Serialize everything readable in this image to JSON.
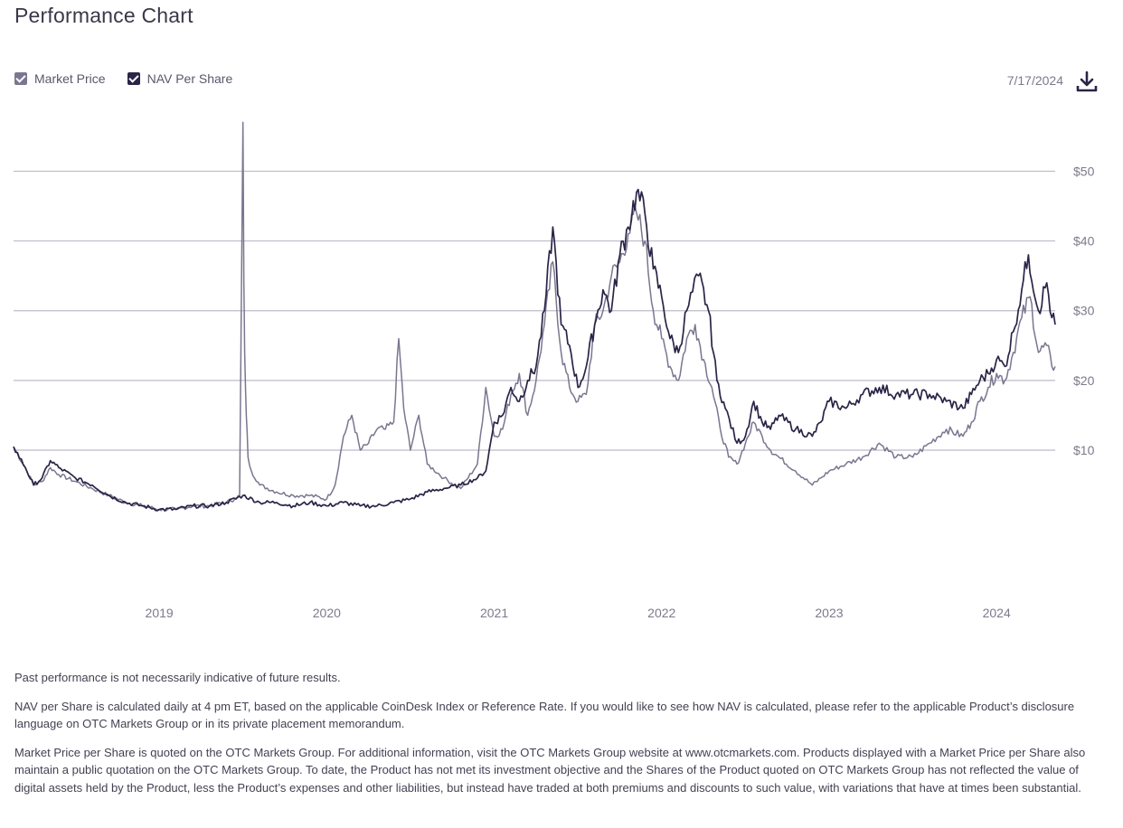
{
  "page": {
    "title": "Performance Chart",
    "date": "7/17/2024",
    "download_icon": "download-icon"
  },
  "legend": [
    {
      "label": "Market Price",
      "color": "#7a7690",
      "checked": true
    },
    {
      "label": "NAV Per Share",
      "color": "#2a2447",
      "checked": true
    }
  ],
  "notes": [
    "Past performance is not necessarily indicative of future results.",
    "NAV per Share is calculated daily at 4 pm ET, based on the applicable CoinDesk Index or Reference Rate. If you would like to see how NAV is calculated, please refer to the applicable Product’s disclosure language on OTC Markets Group or in its private placement memorandum.",
    "Market Price per Share is quoted on the OTC Markets Group. For additional information, visit the OTC Markets Group website at www.otcmarkets.com. Products displayed with a Market Price per Share also maintain a public quotation on the OTC Markets Group. To date, the Product has not met its investment objective and the Shares of the Product quoted on OTC Markets Group has not reflected the value of digital assets held by the Product, less the Product’s expenses and other liabilities, but instead have traded at both premiums and discounts to such value, with variations that have at times been substantial."
  ],
  "chart_data": {
    "type": "line",
    "xlim": [
      2018.13,
      2024.35
    ],
    "ylim": [
      -11,
      59
    ],
    "xticks": [
      {
        "value": 2019,
        "label": "2019"
      },
      {
        "value": 2020,
        "label": "2020"
      },
      {
        "value": 2021,
        "label": "2021"
      },
      {
        "value": 2022,
        "label": "2022"
      },
      {
        "value": 2023,
        "label": "2023"
      },
      {
        "value": 2024,
        "label": "2024"
      }
    ],
    "yticks": [
      {
        "value": 10,
        "label": "$10"
      },
      {
        "value": 20,
        "label": "$20"
      },
      {
        "value": 30,
        "label": "$30"
      },
      {
        "value": 40,
        "label": "$40"
      },
      {
        "value": 50,
        "label": "$50"
      }
    ],
    "grid": true,
    "series": [
      {
        "name": "Market Price",
        "color": "#7a7690",
        "points": [
          [
            2018.13,
            10.5
          ],
          [
            2018.2,
            7.5
          ],
          [
            2018.25,
            5
          ],
          [
            2018.3,
            5.5
          ],
          [
            2018.35,
            7.5
          ],
          [
            2018.4,
            6.5
          ],
          [
            2018.5,
            5.5
          ],
          [
            2018.6,
            4.5
          ],
          [
            2018.7,
            3.5
          ],
          [
            2018.8,
            2.5
          ],
          [
            2018.9,
            2
          ],
          [
            2019.0,
            1.5
          ],
          [
            2019.1,
            1.5
          ],
          [
            2019.2,
            2
          ],
          [
            2019.3,
            2
          ],
          [
            2019.4,
            2.5
          ],
          [
            2019.45,
            3
          ],
          [
            2019.48,
            3.5
          ],
          [
            2019.5,
            57
          ],
          [
            2019.505,
            34
          ],
          [
            2019.51,
            24
          ],
          [
            2019.52,
            15
          ],
          [
            2019.53,
            9
          ],
          [
            2019.55,
            7
          ],
          [
            2019.6,
            5
          ],
          [
            2019.7,
            4
          ],
          [
            2019.8,
            3.5
          ],
          [
            2019.9,
            3.5
          ],
          [
            2020.0,
            3
          ],
          [
            2020.05,
            5
          ],
          [
            2020.1,
            12
          ],
          [
            2020.15,
            15
          ],
          [
            2020.2,
            10
          ],
          [
            2020.25,
            11
          ],
          [
            2020.3,
            13
          ],
          [
            2020.35,
            13
          ],
          [
            2020.4,
            14
          ],
          [
            2020.43,
            26
          ],
          [
            2020.46,
            16
          ],
          [
            2020.5,
            10
          ],
          [
            2020.55,
            15
          ],
          [
            2020.6,
            8
          ],
          [
            2020.7,
            6
          ],
          [
            2020.8,
            4.5
          ],
          [
            2020.9,
            8
          ],
          [
            2020.95,
            19
          ],
          [
            2021.0,
            12
          ],
          [
            2021.05,
            13
          ],
          [
            2021.1,
            18
          ],
          [
            2021.15,
            21
          ],
          [
            2021.2,
            15
          ],
          [
            2021.25,
            20
          ],
          [
            2021.3,
            28
          ],
          [
            2021.35,
            37
          ],
          [
            2021.4,
            24
          ],
          [
            2021.45,
            19
          ],
          [
            2021.5,
            17
          ],
          [
            2021.55,
            18
          ],
          [
            2021.6,
            28
          ],
          [
            2021.65,
            30
          ],
          [
            2021.7,
            35
          ],
          [
            2021.75,
            37
          ],
          [
            2021.8,
            41
          ],
          [
            2021.85,
            44
          ],
          [
            2021.9,
            40
          ],
          [
            2021.95,
            30
          ],
          [
            2022.0,
            26
          ],
          [
            2022.05,
            22
          ],
          [
            2022.1,
            20
          ],
          [
            2022.15,
            26
          ],
          [
            2022.2,
            28
          ],
          [
            2022.25,
            23
          ],
          [
            2022.3,
            19
          ],
          [
            2022.35,
            13
          ],
          [
            2022.4,
            9
          ],
          [
            2022.45,
            8
          ],
          [
            2022.5,
            11
          ],
          [
            2022.55,
            14
          ],
          [
            2022.6,
            12
          ],
          [
            2022.65,
            10
          ],
          [
            2022.7,
            9
          ],
          [
            2022.8,
            7
          ],
          [
            2022.9,
            5
          ],
          [
            2022.95,
            6
          ],
          [
            2023.0,
            7
          ],
          [
            2023.1,
            8
          ],
          [
            2023.2,
            9
          ],
          [
            2023.3,
            11
          ],
          [
            2023.4,
            9
          ],
          [
            2023.5,
            9
          ],
          [
            2023.6,
            11
          ],
          [
            2023.7,
            13
          ],
          [
            2023.8,
            12
          ],
          [
            2023.85,
            14
          ],
          [
            2023.9,
            17
          ],
          [
            2023.95,
            19
          ],
          [
            2024.0,
            21
          ],
          [
            2024.05,
            20
          ],
          [
            2024.1,
            24
          ],
          [
            2024.15,
            29
          ],
          [
            2024.2,
            32
          ],
          [
            2024.25,
            24
          ],
          [
            2024.3,
            25
          ],
          [
            2024.33,
            22
          ],
          [
            2024.35,
            22
          ]
        ]
      },
      {
        "name": "NAV Per Share",
        "color": "#2a2447",
        "points": [
          [
            2018.13,
            10.5
          ],
          [
            2018.2,
            7.5
          ],
          [
            2018.25,
            5
          ],
          [
            2018.3,
            6
          ],
          [
            2018.35,
            8.5
          ],
          [
            2018.4,
            7.5
          ],
          [
            2018.5,
            6
          ],
          [
            2018.6,
            5
          ],
          [
            2018.7,
            3.5
          ],
          [
            2018.8,
            2.5
          ],
          [
            2018.9,
            2
          ],
          [
            2019.0,
            1.5
          ],
          [
            2019.1,
            1.5
          ],
          [
            2019.2,
            2
          ],
          [
            2019.3,
            2
          ],
          [
            2019.4,
            2.5
          ],
          [
            2019.5,
            3.5
          ],
          [
            2019.6,
            2.5
          ],
          [
            2019.7,
            2.5
          ],
          [
            2019.8,
            2
          ],
          [
            2019.9,
            2.5
          ],
          [
            2020.0,
            2
          ],
          [
            2020.1,
            2.5
          ],
          [
            2020.2,
            2
          ],
          [
            2020.3,
            2
          ],
          [
            2020.4,
            2.5
          ],
          [
            2020.5,
            3
          ],
          [
            2020.6,
            4
          ],
          [
            2020.7,
            4.5
          ],
          [
            2020.8,
            5
          ],
          [
            2020.9,
            6
          ],
          [
            2020.95,
            7
          ],
          [
            2021.0,
            14
          ],
          [
            2021.05,
            15
          ],
          [
            2021.1,
            19
          ],
          [
            2021.15,
            17
          ],
          [
            2021.2,
            20
          ],
          [
            2021.25,
            22
          ],
          [
            2021.3,
            30
          ],
          [
            2021.35,
            42
          ],
          [
            2021.4,
            28
          ],
          [
            2021.45,
            25
          ],
          [
            2021.5,
            19
          ],
          [
            2021.55,
            22
          ],
          [
            2021.6,
            28
          ],
          [
            2021.65,
            33
          ],
          [
            2021.7,
            30
          ],
          [
            2021.75,
            38
          ],
          [
            2021.8,
            42
          ],
          [
            2021.85,
            47
          ],
          [
            2021.9,
            44
          ],
          [
            2021.95,
            36
          ],
          [
            2022.0,
            32
          ],
          [
            2022.05,
            26
          ],
          [
            2022.1,
            24
          ],
          [
            2022.15,
            30
          ],
          [
            2022.22,
            35
          ],
          [
            2022.28,
            30
          ],
          [
            2022.33,
            20
          ],
          [
            2022.38,
            16
          ],
          [
            2022.45,
            11
          ],
          [
            2022.5,
            12
          ],
          [
            2022.55,
            17
          ],
          [
            2022.6,
            14
          ],
          [
            2022.65,
            13
          ],
          [
            2022.7,
            15
          ],
          [
            2022.8,
            13
          ],
          [
            2022.9,
            12
          ],
          [
            2022.95,
            14
          ],
          [
            2023.0,
            17
          ],
          [
            2023.1,
            16
          ],
          [
            2023.2,
            18
          ],
          [
            2023.3,
            19
          ],
          [
            2023.4,
            18
          ],
          [
            2023.5,
            18
          ],
          [
            2023.6,
            18
          ],
          [
            2023.7,
            17
          ],
          [
            2023.8,
            16
          ],
          [
            2023.85,
            18
          ],
          [
            2023.9,
            20
          ],
          [
            2023.95,
            21
          ],
          [
            2024.0,
            23
          ],
          [
            2024.05,
            22
          ],
          [
            2024.1,
            27
          ],
          [
            2024.15,
            33
          ],
          [
            2024.19,
            38
          ],
          [
            2024.25,
            30
          ],
          [
            2024.3,
            34
          ],
          [
            2024.33,
            29
          ],
          [
            2024.35,
            28
          ]
        ]
      }
    ]
  }
}
